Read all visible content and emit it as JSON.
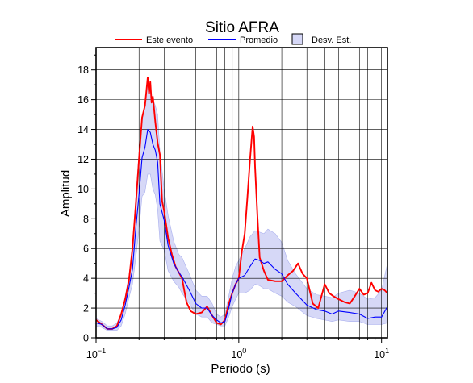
{
  "chart_data": {
    "type": "line",
    "title": "Sitio AFRA",
    "xlabel": "Periodo (s)",
    "ylabel": "Amplitud",
    "x_scale": "log",
    "xlim": [
      0.1,
      11
    ],
    "ylim": [
      0,
      19.5
    ],
    "x_ticks": [
      {
        "value": 0.1,
        "base": "10",
        "exp": "−1"
      },
      {
        "value": 1,
        "base": "10",
        "exp": "0"
      },
      {
        "value": 10,
        "base": "10",
        "exp": "1"
      }
    ],
    "y_ticks": [
      0,
      2,
      4,
      6,
      8,
      10,
      12,
      14,
      16,
      18
    ],
    "grid": true,
    "legend_position": "top",
    "colors": {
      "event": "#ff0000",
      "mean": "#0000ff",
      "band_fill": "#d6d8f7",
      "band_stroke": "#aab0ee"
    },
    "series": [
      {
        "name": "Este evento",
        "x": [
          0.1,
          0.11,
          0.12,
          0.13,
          0.14,
          0.15,
          0.16,
          0.17,
          0.18,
          0.19,
          0.2,
          0.21,
          0.22,
          0.23,
          0.235,
          0.24,
          0.245,
          0.25,
          0.26,
          0.27,
          0.28,
          0.29,
          0.3,
          0.32,
          0.34,
          0.36,
          0.38,
          0.4,
          0.43,
          0.46,
          0.5,
          0.55,
          0.6,
          0.65,
          0.7,
          0.75,
          0.8,
          0.85,
          0.9,
          0.95,
          1.0,
          1.05,
          1.1,
          1.15,
          1.2,
          1.25,
          1.28,
          1.3,
          1.35,
          1.4,
          1.5,
          1.6,
          1.8,
          2.0,
          2.2,
          2.4,
          2.6,
          2.8,
          3.0,
          3.3,
          3.6,
          4.0,
          4.3,
          4.6,
          5.0,
          5.5,
          6.0,
          6.5,
          7.0,
          7.5,
          8.0,
          8.5,
          9.0,
          9.5,
          10.0,
          10.5,
          11.0
        ],
        "y": [
          1.2,
          0.9,
          0.6,
          0.6,
          0.8,
          1.6,
          2.6,
          3.9,
          6.0,
          9.0,
          12.0,
          14.8,
          15.6,
          17.5,
          16.4,
          17.2,
          15.8,
          16.2,
          14.5,
          13.1,
          12.3,
          9.2,
          8.5,
          6.7,
          5.6,
          4.8,
          4.4,
          4.0,
          2.4,
          1.8,
          1.6,
          1.7,
          2.1,
          1.5,
          1.0,
          0.9,
          1.2,
          2.3,
          3.0,
          3.6,
          4.0,
          5.8,
          7.0,
          9.5,
          12.0,
          14.2,
          13.5,
          11.5,
          8.2,
          5.4,
          4.5,
          3.9,
          3.8,
          3.8,
          4.2,
          4.5,
          5.0,
          4.3,
          4.0,
          2.3,
          2.0,
          3.6,
          3.0,
          2.8,
          2.6,
          2.4,
          2.3,
          2.8,
          3.3,
          2.9,
          3.0,
          3.7,
          3.2,
          3.1,
          3.3,
          3.2,
          3.0
        ]
      },
      {
        "name": "Promedio",
        "x": [
          0.1,
          0.11,
          0.12,
          0.13,
          0.14,
          0.15,
          0.16,
          0.17,
          0.18,
          0.19,
          0.2,
          0.21,
          0.22,
          0.23,
          0.24,
          0.25,
          0.26,
          0.27,
          0.28,
          0.3,
          0.32,
          0.35,
          0.38,
          0.4,
          0.45,
          0.5,
          0.55,
          0.6,
          0.65,
          0.7,
          0.75,
          0.8,
          0.85,
          0.9,
          0.95,
          1.0,
          1.1,
          1.2,
          1.3,
          1.4,
          1.5,
          1.6,
          1.8,
          2.0,
          2.2,
          2.5,
          3.0,
          3.5,
          4.0,
          4.5,
          5.0,
          6.0,
          7.0,
          8.0,
          9.0,
          10.0,
          11.0
        ],
        "y": [
          1.0,
          0.9,
          0.6,
          0.6,
          0.7,
          1.2,
          2.2,
          3.4,
          4.6,
          7.4,
          9.6,
          12.1,
          12.8,
          14.0,
          13.8,
          13.0,
          12.6,
          11.8,
          9.0,
          7.9,
          6.2,
          5.0,
          4.4,
          4.1,
          3.2,
          2.3,
          2.0,
          2.0,
          1.5,
          1.2,
          1.0,
          1.1,
          2.0,
          3.0,
          3.6,
          4.0,
          4.2,
          4.8,
          5.3,
          5.2,
          5.0,
          5.1,
          4.6,
          4.3,
          3.6,
          3.0,
          2.2,
          1.9,
          1.8,
          1.6,
          1.8,
          1.7,
          1.6,
          1.3,
          1.4,
          1.4,
          2.1
        ]
      }
    ],
    "band": {
      "name": "Desv. Est.",
      "x": [
        0.1,
        0.11,
        0.12,
        0.13,
        0.14,
        0.15,
        0.16,
        0.17,
        0.18,
        0.19,
        0.2,
        0.21,
        0.22,
        0.23,
        0.24,
        0.25,
        0.26,
        0.27,
        0.28,
        0.3,
        0.32,
        0.35,
        0.38,
        0.4,
        0.45,
        0.5,
        0.55,
        0.6,
        0.65,
        0.7,
        0.75,
        0.8,
        0.85,
        0.9,
        0.95,
        1.0,
        1.1,
        1.2,
        1.3,
        1.4,
        1.5,
        1.6,
        1.8,
        2.0,
        2.2,
        2.5,
        3.0,
        3.5,
        4.0,
        4.5,
        5.0,
        6.0,
        7.0,
        8.0,
        9.0,
        10.0,
        11.0
      ],
      "upper": [
        1.3,
        1.1,
        0.8,
        0.8,
        1.0,
        1.6,
        2.8,
        4.2,
        6.0,
        9.5,
        12.5,
        14.5,
        15.8,
        17.0,
        16.5,
        16.0,
        15.6,
        15.0,
        12.5,
        10.0,
        8.2,
        6.5,
        5.6,
        5.4,
        4.3,
        3.2,
        2.8,
        2.8,
        2.3,
        1.6,
        1.4,
        1.6,
        2.8,
        4.0,
        4.8,
        5.2,
        6.0,
        6.8,
        7.2,
        7.1,
        7.0,
        7.3,
        7.0,
        6.4,
        5.2,
        4.3,
        3.3,
        2.9,
        2.8,
        2.7,
        3.0,
        3.2,
        3.0,
        2.6,
        2.7,
        3.2,
        5.0
      ],
      "lower": [
        0.8,
        0.7,
        0.5,
        0.5,
        0.5,
        0.8,
        1.6,
        2.7,
        3.6,
        5.4,
        7.3,
        9.5,
        9.8,
        11.0,
        11.0,
        10.0,
        9.6,
        8.6,
        6.5,
        5.9,
        4.5,
        3.8,
        3.4,
        3.0,
        2.3,
        1.6,
        1.4,
        1.4,
        1.0,
        0.9,
        0.8,
        0.8,
        1.4,
        2.1,
        2.6,
        3.0,
        3.0,
        3.2,
        3.6,
        3.5,
        3.3,
        3.3,
        3.0,
        2.8,
        2.4,
        2.1,
        1.5,
        1.3,
        1.2,
        1.1,
        1.2,
        1.1,
        1.1,
        0.9,
        0.9,
        0.9,
        1.0
      ]
    }
  }
}
